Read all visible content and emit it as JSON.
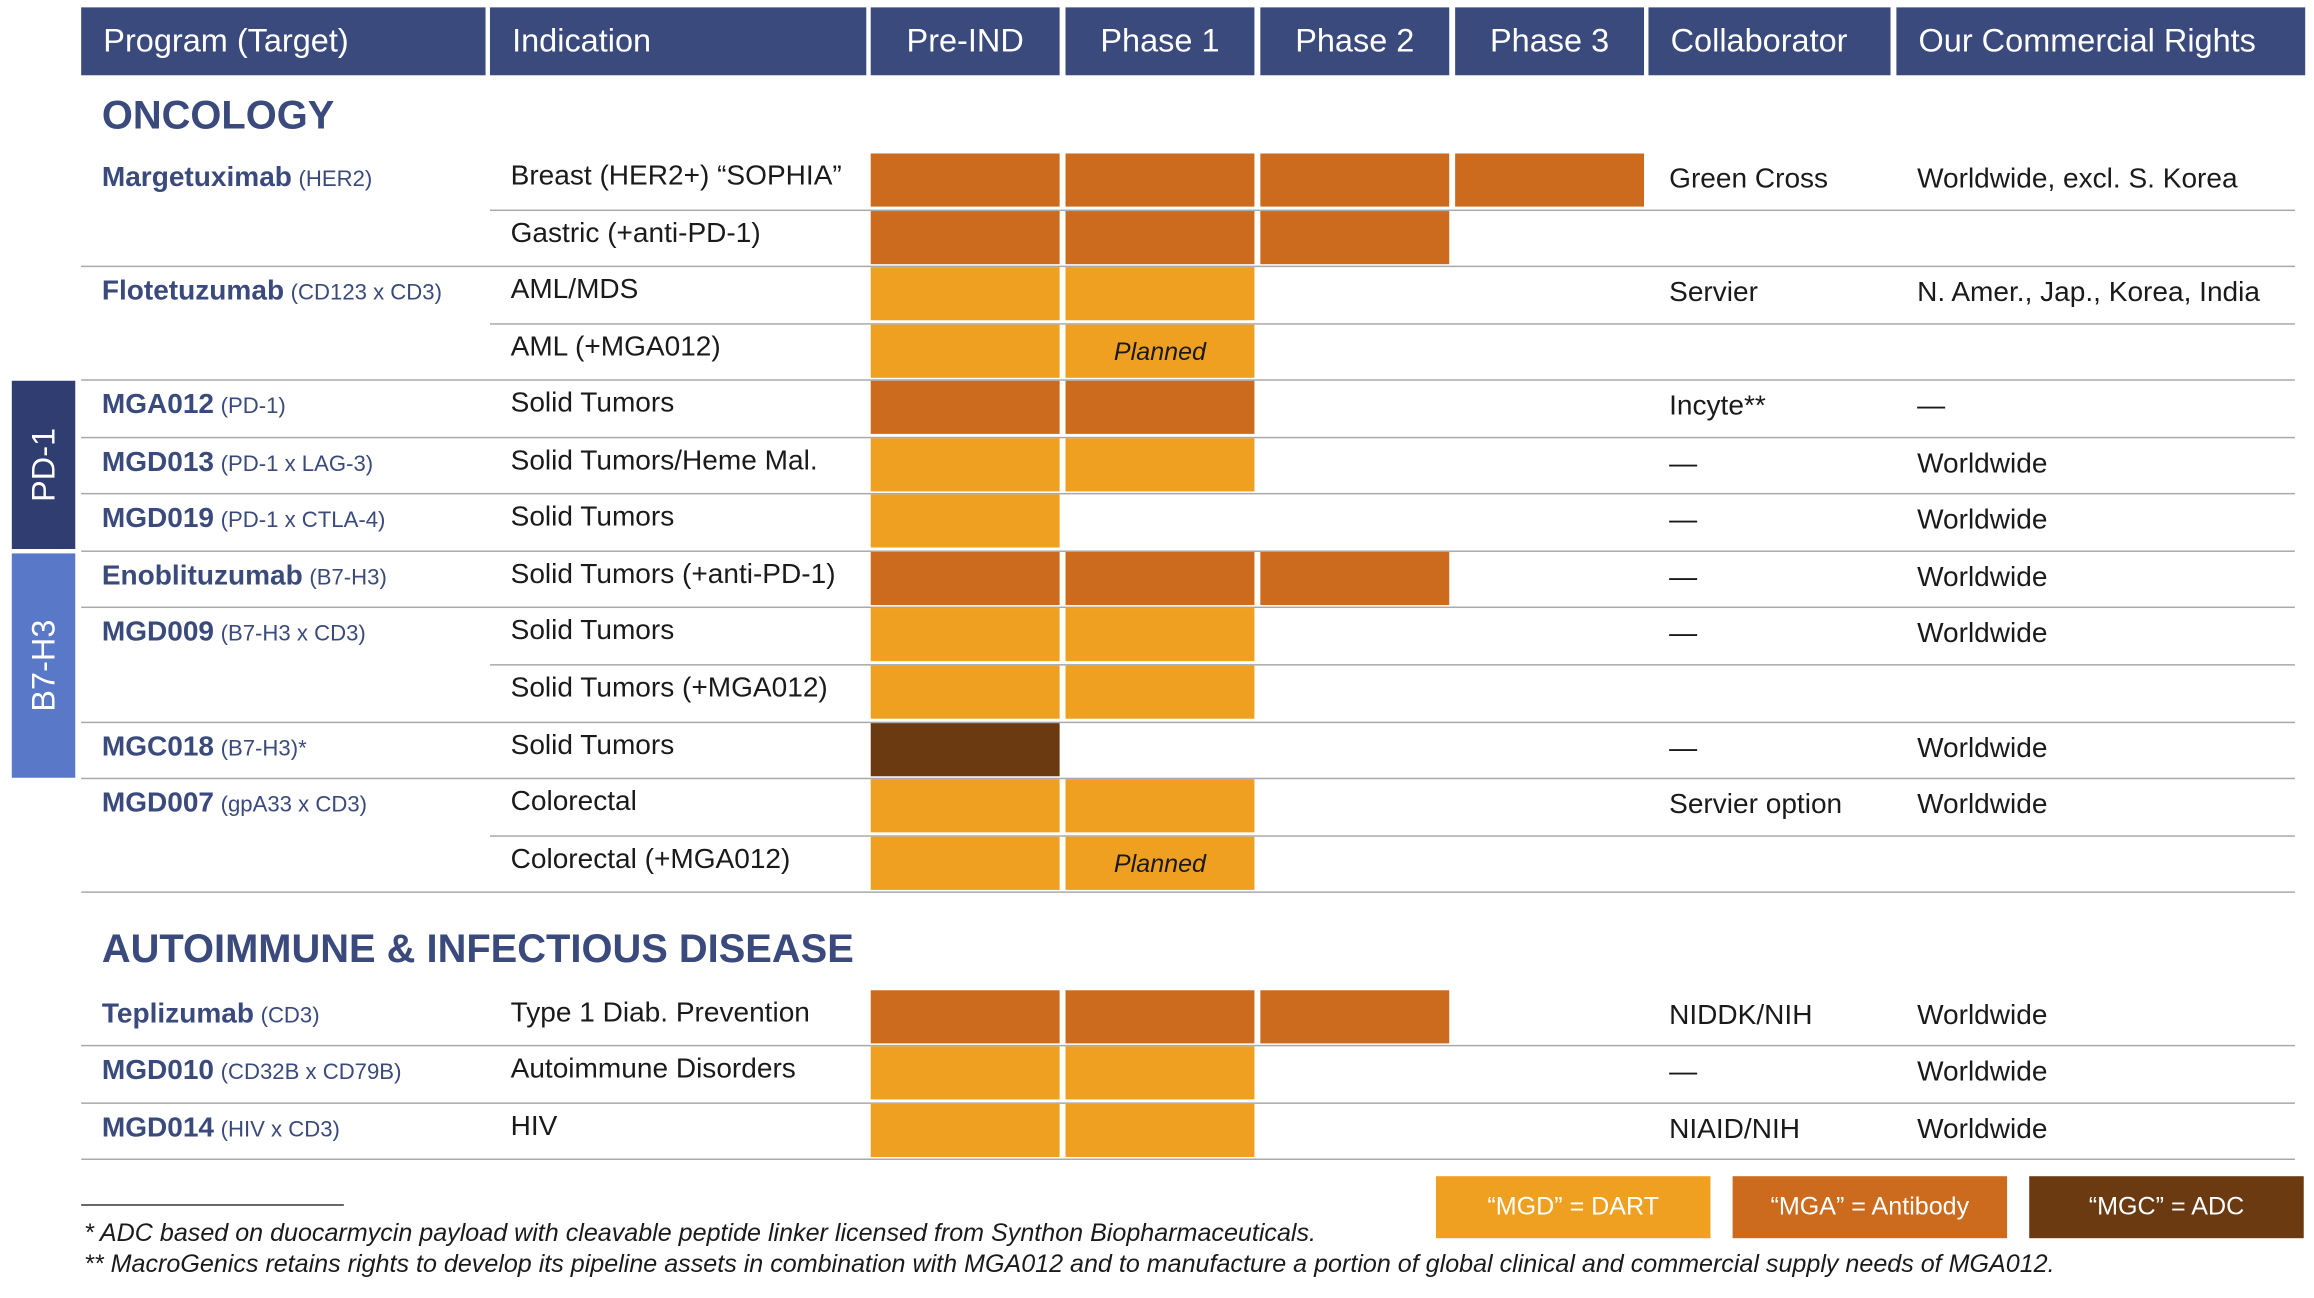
{
  "colors": {
    "header_bg": "#3a4a7c",
    "title_color": "#3a4a7c",
    "dart": "#f0a020",
    "antibody": "#cc6b1e",
    "adc": "#6b3a10",
    "pd1_bg": "#2f3d70",
    "b7h3_bg": "#5a78c8"
  },
  "headers": {
    "program": "Program (Target)",
    "indication": "Indication",
    "pre_ind": "Pre-IND",
    "phase1": "Phase 1",
    "phase2": "Phase 2",
    "phase3": "Phase 3",
    "collaborator": "Collaborator",
    "rights": "Our Commercial Rights"
  },
  "sections": {
    "oncology": "ONCOLOGY",
    "autoimmune": "AUTOIMMUNE & INFECTIOUS DISEASE"
  },
  "side_labels": {
    "pd1": "PD-1",
    "b7h3": "B7-H3"
  },
  "programs": [
    {
      "name": "Margetuximab",
      "target": "(HER2)",
      "collaborator": "Green Cross",
      "rights": "Worldwide, excl. S. Korea"
    },
    {
      "name": "Flotetuzumab",
      "target": "(CD123 x CD3)",
      "collaborator": "Servier",
      "rights": "N. Amer., Jap., Korea, India"
    },
    {
      "name": "MGA012",
      "target": "(PD-1)",
      "collaborator": "Incyte**",
      "rights": "—"
    },
    {
      "name": "MGD013",
      "target": "(PD-1 x LAG-3)",
      "collaborator": "—",
      "rights": "Worldwide"
    },
    {
      "name": "MGD019",
      "target": "(PD-1 x CTLA-4)",
      "collaborator": "—",
      "rights": "Worldwide"
    },
    {
      "name": "Enoblituzumab",
      "target": "(B7-H3)",
      "collaborator": "—",
      "rights": "Worldwide"
    },
    {
      "name": "MGD009",
      "target": "(B7-H3 x CD3)",
      "collaborator": "—",
      "rights": "Worldwide"
    },
    {
      "name": "MGC018",
      "target": "(B7-H3)*",
      "collaborator": "—",
      "rights": "Worldwide"
    },
    {
      "name": "MGD007",
      "target": "(gpA33 x CD3)",
      "collaborator": "Servier option",
      "rights": "Worldwide"
    },
    {
      "name": "Teplizumab",
      "target": "(CD3)",
      "collaborator": "NIDDK/NIH",
      "rights": "Worldwide"
    },
    {
      "name": "MGD010",
      "target": "(CD32B x CD79B)",
      "collaborator": "—",
      "rights": "Worldwide"
    },
    {
      "name": "MGD014",
      "target": "(HIV x CD3)",
      "collaborator": "NIAID/NIH",
      "rights": "Worldwide"
    }
  ],
  "indications": [
    {
      "label": "Breast (HER2+) “SOPHIA”",
      "stage": 4,
      "type": "antibody"
    },
    {
      "label": "Gastric (+anti-PD-1)",
      "stage": 3,
      "type": "antibody"
    },
    {
      "label": "AML/MDS",
      "stage": 2,
      "type": "dart"
    },
    {
      "label": "AML (+MGA012)",
      "stage": 2,
      "type": "dart",
      "planned": "Planned"
    },
    {
      "label": "Solid Tumors",
      "stage": 2,
      "type": "antibody"
    },
    {
      "label": "Solid Tumors/Heme Mal.",
      "stage": 2,
      "type": "dart"
    },
    {
      "label": "Solid Tumors",
      "stage": 1,
      "type": "dart"
    },
    {
      "label": "Solid Tumors (+anti-PD-1)",
      "stage": 3,
      "type": "antibody"
    },
    {
      "label": "Solid Tumors",
      "stage": 2,
      "type": "dart"
    },
    {
      "label": "Solid Tumors (+MGA012)",
      "stage": 2,
      "type": "dart"
    },
    {
      "label": "Solid Tumors",
      "stage": 1,
      "type": "adc"
    },
    {
      "label": "Colorectal",
      "stage": 2,
      "type": "dart"
    },
    {
      "label": "Colorectal (+MGA012)",
      "stage": 2,
      "type": "dart",
      "planned": "Planned"
    },
    {
      "label": "Type 1 Diab. Prevention",
      "stage": 3,
      "type": "antibody"
    },
    {
      "label": "Autoimmune Disorders",
      "stage": 2,
      "type": "dart"
    },
    {
      "label": "HIV",
      "stage": 2,
      "type": "dart"
    }
  ],
  "legend": {
    "dart": "“MGD” = DART",
    "antibody": "“MGA” = Antibody",
    "adc": "“MGC” = ADC"
  },
  "footnotes": {
    "note1": "* ADC based on duocarmycin payload with cleavable peptide linker licensed from Synthon Biopharmaceuticals.",
    "note2": "** MacroGenics retains rights to develop its pipeline assets in combination with MGA012 and to manufacture a portion of global clinical and commercial supply needs of MGA012."
  }
}
